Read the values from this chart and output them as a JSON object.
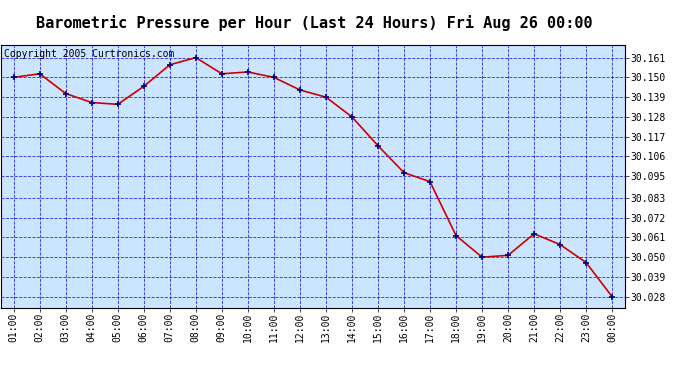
{
  "title": "Barometric Pressure per Hour (Last 24 Hours) Fri Aug 26 00:00",
  "copyright": "Copyright 2005 Curtronics.com",
  "x_labels": [
    "01:00",
    "02:00",
    "03:00",
    "04:00",
    "05:00",
    "06:00",
    "07:00",
    "08:00",
    "09:00",
    "10:00",
    "11:00",
    "12:00",
    "13:00",
    "14:00",
    "15:00",
    "16:00",
    "17:00",
    "18:00",
    "19:00",
    "20:00",
    "21:00",
    "22:00",
    "23:00",
    "00:00"
  ],
  "y_values": [
    30.15,
    30.152,
    30.141,
    30.136,
    30.135,
    30.145,
    30.157,
    30.161,
    30.152,
    30.153,
    30.15,
    30.143,
    30.139,
    30.128,
    30.112,
    30.097,
    30.092,
    30.062,
    30.05,
    30.051,
    30.063,
    30.057,
    30.047,
    30.028
  ],
  "y_ticks": [
    30.028,
    30.039,
    30.05,
    30.061,
    30.072,
    30.083,
    30.095,
    30.106,
    30.117,
    30.128,
    30.139,
    30.15,
    30.161
  ],
  "ylim_min": 30.022,
  "ylim_max": 30.168,
  "line_color": "#cc0000",
  "marker_color": "#000080",
  "bg_color": "#cce5ff",
  "outer_bg": "#ffffff",
  "grid_color": "#0000cc",
  "title_fontsize": 11,
  "copyright_fontsize": 7,
  "tick_fontsize": 7
}
